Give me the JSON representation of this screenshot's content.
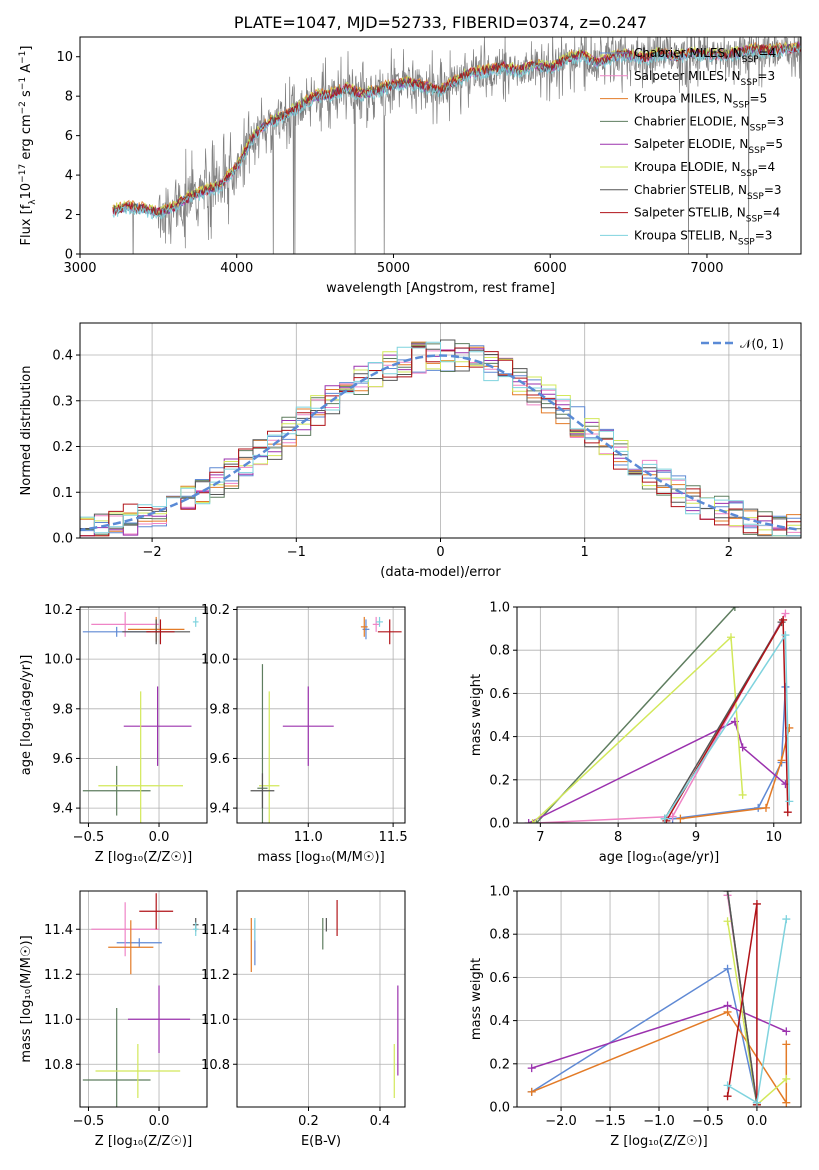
{
  "chart_data": [
    {
      "id": "spectrum",
      "type": "line",
      "title": "PLATE=1047, MJD=52733, FIBERID=0374, z=0.247",
      "xlabel": "wavelength [Angstrom, rest frame]",
      "ylabel_parts": [
        "Flux [f",
        "λ",
        "10",
        "−17",
        " erg cm",
        "−2",
        " s",
        "−1",
        " A",
        "−1",
        "]"
      ],
      "xlim": [
        3000,
        7600
      ],
      "ylim": [
        0,
        11
      ],
      "xticks": [
        3000,
        4000,
        5000,
        6000,
        7000
      ],
      "yticks": [
        0,
        2,
        4,
        6,
        8,
        10
      ],
      "grid": false,
      "legend_position": "top-right",
      "observed_curve": {
        "x": [
          3210,
          3300,
          3400,
          3500,
          3600,
          3700,
          3800,
          3900,
          4000,
          4100,
          4200,
          4300,
          4400,
          4500,
          4600,
          4700,
          4800,
          4900,
          5000,
          5100,
          5200,
          5300,
          5400,
          5500,
          5600,
          5700,
          5800,
          5900,
          6000,
          6100,
          6200,
          6300,
          6400,
          6500,
          6600,
          6700,
          6800,
          6900,
          7000,
          7100,
          7200,
          7300,
          7400,
          7500,
          7600
        ],
        "y": [
          2.2,
          2.4,
          2.3,
          2.1,
          2.4,
          2.9,
          3.2,
          3.5,
          4.4,
          5.9,
          6.7,
          7.0,
          7.5,
          8.0,
          8.1,
          8.4,
          8.1,
          8.3,
          8.6,
          8.7,
          8.5,
          8.3,
          8.8,
          9.2,
          9.3,
          9.5,
          9.3,
          9.6,
          9.4,
          9.9,
          10.1,
          9.7,
          10.0,
          10.1,
          9.9,
          10.2,
          10.0,
          10.2,
          10.1,
          10.1,
          10.2,
          10.4,
          10.3,
          10.4,
          10.5
        ]
      },
      "series": [
        {
          "name": "Chabrier MILES, N",
          "sub": "SSP",
          "suffix": "=4",
          "color": "#5f89d4"
        },
        {
          "name": "Salpeter MILES, N",
          "sub": "SSP",
          "suffix": "=3",
          "color": "#ef84c6"
        },
        {
          "name": "Kroupa MILES, N",
          "sub": "SSP",
          "suffix": "=5",
          "color": "#e37b27"
        },
        {
          "name": "Chabrier ELODIE, N",
          "sub": "SSP",
          "suffix": "=3",
          "color": "#5e7d5f"
        },
        {
          "name": "Salpeter ELODIE, N",
          "sub": "SSP",
          "suffix": "=5",
          "color": "#9b32ae"
        },
        {
          "name": "Kroupa ELODIE, N",
          "sub": "SSP",
          "suffix": "=4",
          "color": "#d2e85a"
        },
        {
          "name": "Chabrier STELIB, N",
          "sub": "SSP",
          "suffix": "=3",
          "color": "#555555"
        },
        {
          "name": "Salpeter STELIB, N",
          "sub": "SSP",
          "suffix": "=4",
          "color": "#b01318"
        },
        {
          "name": "Kroupa STELIB, N",
          "sub": "SSP",
          "suffix": "=3",
          "color": "#7fd3de"
        }
      ]
    },
    {
      "id": "residuals",
      "type": "line",
      "xlabel": "(data-model)/error",
      "ylabel": "Normed distribution",
      "xlim": [
        -2.5,
        2.5
      ],
      "ylim": [
        0,
        0.47
      ],
      "xticks": [
        -2,
        -1,
        0,
        1,
        2
      ],
      "xtick_labels": [
        "−2",
        "−1",
        "0",
        "1",
        "2"
      ],
      "yticks": [
        0.0,
        0.1,
        0.2,
        0.3,
        0.4
      ],
      "ytick_labels": [
        "0.0",
        "0.1",
        "0.2",
        "0.3",
        "0.4"
      ],
      "grid": true,
      "legend_position": "top-right",
      "reference_curve": {
        "name": "𝒩(0, 1)",
        "color": "#5a8ad6",
        "mean": 0,
        "sigma": 1
      },
      "bin_width": 0.1
    },
    {
      "id": "age_vs_Z",
      "type": "scatter",
      "xlabel": "Z [log₁₀(Z/Z☉)]",
      "ylabel": "age  [log₁₀(age/yr)]",
      "xlim": [
        -0.56,
        0.34
      ],
      "ylim": [
        9.34,
        10.21
      ],
      "xticks": [
        -0.5,
        0.0
      ],
      "xtick_labels": [
        "−0.5",
        "0.0"
      ],
      "yticks": [
        9.4,
        9.6,
        9.8,
        10.0,
        10.2
      ],
      "ytick_labels": [
        "9.4",
        "9.6",
        "9.8",
        "10.0",
        "10.2"
      ],
      "points": [
        {
          "x": -0.3,
          "y": 10.11,
          "xerr": 0.24,
          "yerr": 0.02,
          "color": "#5f89d4"
        },
        {
          "x": -0.24,
          "y": 10.14,
          "xerr": 0.24,
          "yerr": 0.05,
          "color": "#ef84c6"
        },
        {
          "x": -0.02,
          "y": 10.12,
          "xerr": 0.2,
          "yerr": 0.05,
          "color": "#e37b27"
        },
        {
          "x": -0.3,
          "y": 9.47,
          "xerr": 0.24,
          "yerr": 0.1,
          "color": "#5e7d5f"
        },
        {
          "x": -0.01,
          "y": 9.73,
          "xerr": 0.24,
          "yerr": 0.16,
          "color": "#9b32ae"
        },
        {
          "x": -0.13,
          "y": 9.49,
          "xerr": 0.3,
          "yerr": 0.38,
          "color": "#d2e85a"
        },
        {
          "x": -0.02,
          "y": 10.11,
          "xerr": 0.24,
          "yerr": 0.05,
          "color": "#555555"
        },
        {
          "x": 0.01,
          "y": 10.11,
          "xerr": 0.1,
          "yerr": 0.05,
          "color": "#b01318"
        },
        {
          "x": 0.26,
          "y": 10.15,
          "xerr": 0.02,
          "yerr": 0.02,
          "color": "#7fd3de"
        }
      ]
    },
    {
      "id": "age_vs_mass",
      "type": "scatter",
      "xlabel": "mass [log₁₀(M/M☉)]",
      "xlim": [
        10.58,
        11.57
      ],
      "ylim": [
        9.34,
        10.21
      ],
      "xticks": [
        11.0,
        11.5
      ],
      "xtick_labels": [
        "11.0",
        "11.5"
      ],
      "yticks": [
        9.4,
        9.6,
        9.8,
        10.0,
        10.2
      ],
      "ytick_labels": [
        "9.4",
        "9.6",
        "9.8",
        "10.0",
        "10.2"
      ],
      "points": [
        {
          "x": 11.34,
          "y": 10.12,
          "xerr": 0.02,
          "yerr": 0.04,
          "color": "#5f89d4"
        },
        {
          "x": 11.4,
          "y": 10.14,
          "xerr": 0.02,
          "yerr": 0.03,
          "color": "#ef84c6"
        },
        {
          "x": 11.33,
          "y": 10.13,
          "xerr": 0.02,
          "yerr": 0.04,
          "color": "#e37b27"
        },
        {
          "x": 10.73,
          "y": 9.48,
          "xerr": 0.03,
          "yerr": 0.5,
          "color": "#5e7d5f"
        },
        {
          "x": 11.0,
          "y": 9.73,
          "xerr": 0.15,
          "yerr": 0.16,
          "color": "#9b32ae"
        },
        {
          "x": 10.77,
          "y": 9.49,
          "xerr": 0.06,
          "yerr": 0.38,
          "color": "#d2e85a"
        },
        {
          "x": 10.73,
          "y": 9.47,
          "xerr": 0.07,
          "yerr": 0.07,
          "color": "#555555"
        },
        {
          "x": 11.48,
          "y": 10.11,
          "xerr": 0.07,
          "yerr": 0.05,
          "color": "#b01318"
        },
        {
          "x": 11.42,
          "y": 10.15,
          "xerr": 0.02,
          "yerr": 0.02,
          "color": "#7fd3de"
        }
      ]
    },
    {
      "id": "weight_vs_age",
      "type": "line",
      "xlabel": "age  [log₁₀(age/yr)]",
      "ylabel": "mass weight",
      "xlim": [
        6.7,
        10.35
      ],
      "ylim": [
        0,
        1
      ],
      "xticks": [
        7,
        8,
        9,
        10
      ],
      "xtick_labels": [
        "7",
        "8",
        "9",
        "10"
      ],
      "yticks": [
        0,
        0.2,
        0.4,
        0.6,
        0.8,
        1.0
      ],
      "ytick_labels": [
        "0.0",
        "0.2",
        "0.4",
        "0.6",
        "0.8",
        "1.0"
      ],
      "grid": true,
      "series": [
        {
          "color": "#5f89d4",
          "x": [
            8.7,
            9.8,
            10.1,
            10.15
          ],
          "y": [
            0.02,
            0.07,
            0.28,
            0.63
          ]
        },
        {
          "color": "#ef84c6",
          "x": [
            6.95,
            8.7,
            10.15
          ],
          "y": [
            0.0,
            0.03,
            0.97
          ]
        },
        {
          "color": "#e37b27",
          "x": [
            8.8,
            9.9,
            10.1,
            10.2
          ],
          "y": [
            0.02,
            0.07,
            0.29,
            0.44
          ]
        },
        {
          "color": "#5e7d5f",
          "x": [
            6.95,
            9.5
          ],
          "y": [
            0.0,
            1.0
          ]
        },
        {
          "color": "#9b32ae",
          "x": [
            6.85,
            9.5,
            9.6,
            10.15
          ],
          "y": [
            0.0,
            0.47,
            0.35,
            0.18
          ]
        },
        {
          "color": "#d2e85a",
          "x": [
            6.9,
            9.45,
            9.6
          ],
          "y": [
            0.0,
            0.86,
            0.13
          ]
        },
        {
          "color": "#555555",
          "x": [
            8.6,
            10.1
          ],
          "y": [
            0.02,
            0.93
          ]
        },
        {
          "color": "#b01318",
          "x": [
            8.62,
            10.12,
            10.18
          ],
          "y": [
            0.01,
            0.94,
            0.05
          ]
        },
        {
          "color": "#7fd3de",
          "x": [
            8.6,
            10.15,
            10.2
          ],
          "y": [
            0.02,
            0.87,
            0.1
          ]
        }
      ]
    },
    {
      "id": "mass_vs_Z",
      "type": "scatter",
      "xlabel": "Z [log₁₀(Z/Z☉)]",
      "ylabel": "mass [log₁₀(M/M☉)]",
      "xlim": [
        -0.56,
        0.34
      ],
      "ylim": [
        10.61,
        11.57
      ],
      "xticks": [
        -0.5,
        0.0
      ],
      "xtick_labels": [
        "−0.5",
        "0.0"
      ],
      "yticks": [
        10.8,
        11.0,
        11.2,
        11.4
      ],
      "ytick_labels": [
        "10.8",
        "11.0",
        "11.2",
        "11.4"
      ],
      "points": [
        {
          "x": -0.14,
          "y": 11.34,
          "xerr": 0.16,
          "yerr": 0.02,
          "color": "#5f89d4"
        },
        {
          "x": -0.24,
          "y": 11.4,
          "xerr": 0.24,
          "yerr": 0.12,
          "color": "#ef84c6"
        },
        {
          "x": -0.2,
          "y": 11.32,
          "xerr": 0.16,
          "yerr": 0.12,
          "color": "#e37b27"
        },
        {
          "x": -0.3,
          "y": 10.73,
          "xerr": 0.24,
          "yerr": 0.32,
          "color": "#5e7d5f"
        },
        {
          "x": 0.0,
          "y": 11.0,
          "xerr": 0.22,
          "yerr": 0.15,
          "color": "#9b32ae"
        },
        {
          "x": -0.15,
          "y": 10.77,
          "xerr": 0.3,
          "yerr": 0.12,
          "color": "#d2e85a"
        },
        {
          "x": 0.26,
          "y": 11.42,
          "xerr": 0.02,
          "yerr": 0.03,
          "color": "#555555"
        },
        {
          "x": -0.02,
          "y": 11.48,
          "xerr": 0.12,
          "yerr": 0.08,
          "color": "#b01318"
        },
        {
          "x": 0.26,
          "y": 11.4,
          "xerr": 0.02,
          "yerr": 0.03,
          "color": "#7fd3de"
        }
      ]
    },
    {
      "id": "mass_vs_ebv",
      "type": "scatter",
      "xlabel": "E(B-V)",
      "xlim": [
        0.0,
        0.47
      ],
      "ylim": [
        10.61,
        11.57
      ],
      "xticks": [
        0.2,
        0.4
      ],
      "xtick_labels": [
        "0.2",
        "0.4"
      ],
      "yticks": [
        10.8,
        11.0,
        11.2,
        11.4
      ],
      "ytick_labels": [
        "10.8",
        "11.0",
        "11.2",
        "11.4"
      ],
      "points": [
        {
          "x": 0.05,
          "y": 11.34,
          "xerr": 0.0,
          "yerr": 0.1,
          "color": "#5f89d4"
        },
        {
          "x": 0.04,
          "y": 11.33,
          "xerr": 0.0,
          "yerr": 0.12,
          "color": "#e37b27"
        },
        {
          "x": 0.24,
          "y": 11.38,
          "xerr": 0.0,
          "yerr": 0.07,
          "color": "#5e7d5f"
        },
        {
          "x": 0.25,
          "y": 11.42,
          "xerr": 0.0,
          "yerr": 0.03,
          "color": "#555555"
        },
        {
          "x": 0.28,
          "y": 11.45,
          "xerr": 0.0,
          "yerr": 0.08,
          "color": "#b01318"
        },
        {
          "x": 0.45,
          "y": 10.95,
          "xerr": 0.0,
          "yerr": 0.2,
          "color": "#9b32ae"
        },
        {
          "x": 0.44,
          "y": 10.77,
          "xerr": 0.0,
          "yerr": 0.12,
          "color": "#d2e85a"
        },
        {
          "x": 0.05,
          "y": 11.4,
          "xerr": 0.0,
          "yerr": 0.05,
          "color": "#7fd3de"
        }
      ]
    },
    {
      "id": "weight_vs_Z",
      "type": "line",
      "xlabel": "Z [log₁₀(Z/Z☉)]",
      "ylabel": "mass weight",
      "xlim": [
        -2.45,
        0.45
      ],
      "ylim": [
        0,
        1
      ],
      "xticks": [
        -2.0,
        -1.5,
        -1.0,
        -0.5,
        0.0
      ],
      "xtick_labels": [
        "−2.0",
        "−1.5",
        "−1.0",
        "−0.5",
        "0.0"
      ],
      "yticks": [
        0,
        0.2,
        0.4,
        0.6,
        0.8,
        1.0
      ],
      "ytick_labels": [
        "0.0",
        "0.2",
        "0.4",
        "0.6",
        "0.8",
        "1.0"
      ],
      "grid": true,
      "series": [
        {
          "color": "#5f89d4",
          "x": [
            -2.3,
            -0.3,
            0.0
          ],
          "y": [
            0.07,
            0.64,
            0.02
          ]
        },
        {
          "color": "#ef84c6",
          "x": [
            -0.3,
            0.0
          ],
          "y": [
            0.98,
            0.02
          ]
        },
        {
          "color": "#e37b27",
          "x": [
            -2.3,
            -0.3,
            0.3,
            0.3
          ],
          "y": [
            0.07,
            0.44,
            0.02,
            0.29
          ]
        },
        {
          "color": "#5e7d5f",
          "x": [
            -0.3,
            0.0
          ],
          "y": [
            1.0,
            0.01
          ]
        },
        {
          "color": "#9b32ae",
          "x": [
            -2.3,
            -0.3,
            0.3
          ],
          "y": [
            0.18,
            0.47,
            0.35
          ]
        },
        {
          "color": "#d2e85a",
          "x": [
            -0.3,
            0.0,
            0.3
          ],
          "y": [
            0.86,
            0.01,
            0.13
          ]
        },
        {
          "color": "#555555",
          "x": [
            -0.3,
            0.0
          ],
          "y": [
            1.0,
            0.01
          ]
        },
        {
          "color": "#b01318",
          "x": [
            -0.3,
            0.0,
            0.0
          ],
          "y": [
            0.05,
            0.94,
            0.01
          ]
        },
        {
          "color": "#7fd3de",
          "x": [
            -0.3,
            0.0,
            0.3
          ],
          "y": [
            0.1,
            0.02,
            0.87
          ]
        }
      ]
    }
  ]
}
